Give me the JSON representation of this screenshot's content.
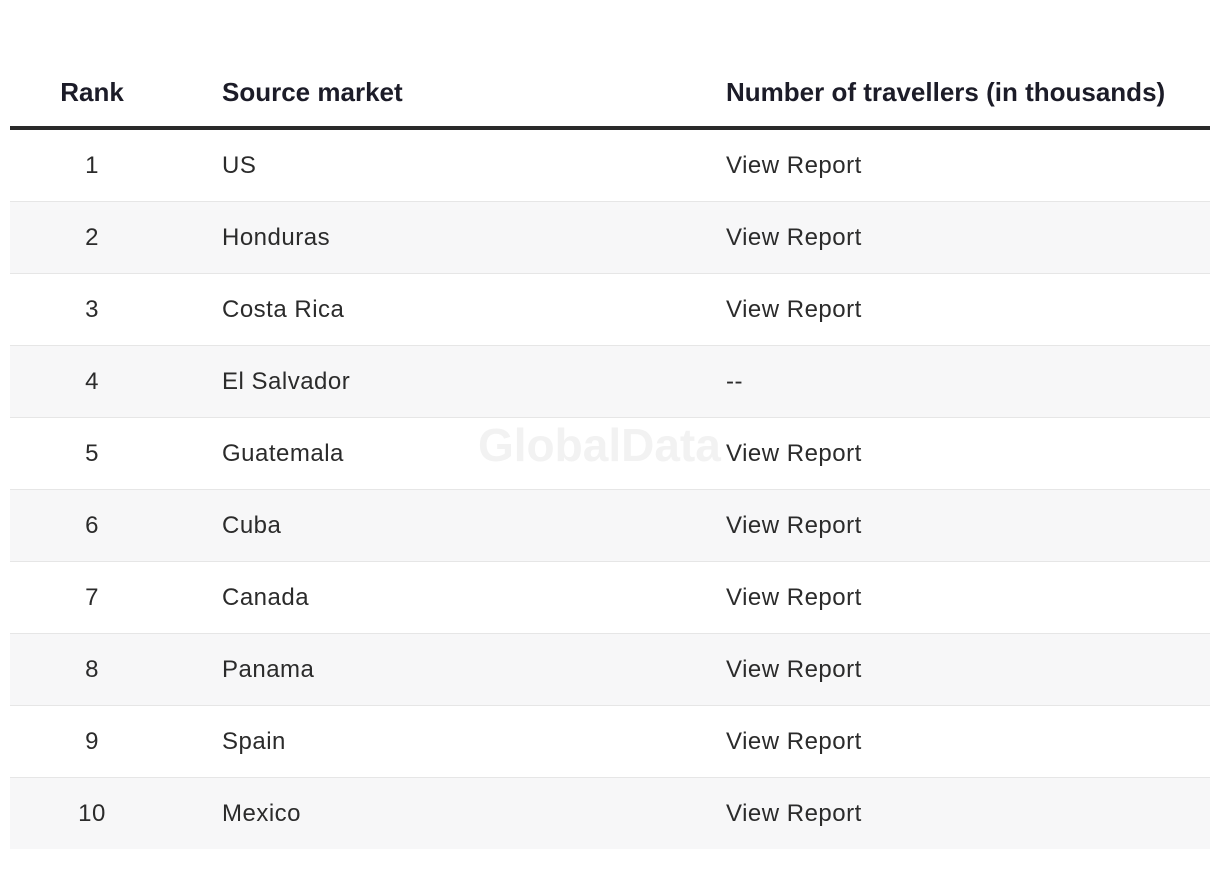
{
  "table": {
    "headers": {
      "rank": "Rank",
      "market": "Source market",
      "number": "Number of travellers (in thousands)"
    },
    "rows": [
      {
        "rank": "1",
        "market": "US",
        "value": "View Report"
      },
      {
        "rank": "2",
        "market": "Honduras",
        "value": "View Report"
      },
      {
        "rank": "3",
        "market": "Costa Rica",
        "value": "View Report"
      },
      {
        "rank": "4",
        "market": "El Salvador",
        "value": "--"
      },
      {
        "rank": "5",
        "market": "Guatemala",
        "value": "View Report"
      },
      {
        "rank": "6",
        "market": "Cuba",
        "value": "View Report"
      },
      {
        "rank": "7",
        "market": "Canada",
        "value": "View Report"
      },
      {
        "rank": "8",
        "market": "Panama",
        "value": "View Report"
      },
      {
        "rank": "9",
        "market": "Spain",
        "value": "View Report"
      },
      {
        "rank": "10",
        "market": "Mexico",
        "value": "View Report"
      }
    ]
  },
  "watermark": "GlobalData"
}
